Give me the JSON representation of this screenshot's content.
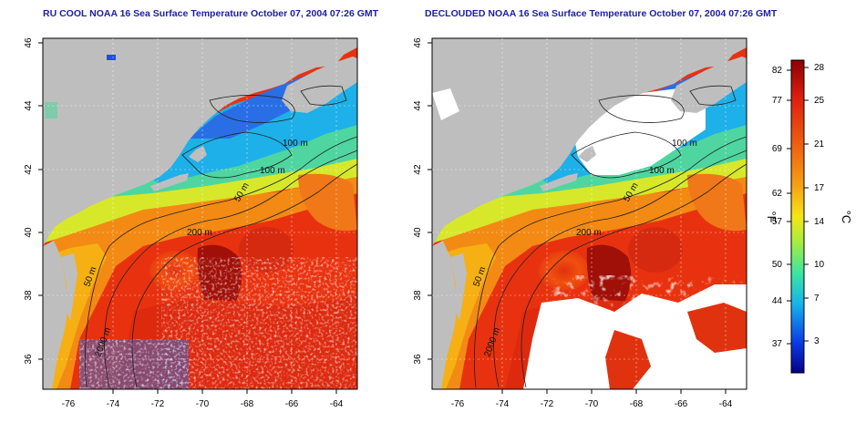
{
  "panels": [
    {
      "title": "RU COOL NOAA 16 Sea Surface Temperature October 07, 2004 07:26 GMT",
      "contour_labels": [
        "100 m",
        "100 m",
        "50 m",
        "200 m",
        "50 m",
        "2000 m"
      ]
    },
    {
      "title": "DECLOUDED NOAA 16 Sea Surface Temperature October 07, 2004 07:26 GMT",
      "contour_labels": [
        "100 m",
        "100 m",
        "50 m",
        "200 m",
        "50 m",
        "2000 m"
      ]
    }
  ],
  "axes": {
    "lat_ticks": [
      "46",
      "44",
      "42",
      "40",
      "38",
      "36"
    ],
    "lon_ticks": [
      "-76",
      "-74",
      "-72",
      "-70",
      "-68",
      "-66",
      "-64"
    ]
  },
  "colorbar": {
    "left_unit": "°F",
    "right_unit": "°C",
    "f_ticks": [
      "82",
      "77",
      "69",
      "62",
      "57",
      "50",
      "44",
      "37"
    ],
    "c_ticks": [
      "28",
      "25",
      "21",
      "17",
      "14",
      "10",
      "7",
      "3"
    ],
    "colors": [
      "#06008a",
      "#0a3ee6",
      "#14b4ec",
      "#3ce6a0",
      "#a8ec3c",
      "#f5e614",
      "#f5a014",
      "#f0640f",
      "#dc1e0f",
      "#8c0005"
    ]
  },
  "colors": {
    "land": "#bebebe",
    "title": "#1c1ca8",
    "cloud_white": "#ffffff"
  }
}
